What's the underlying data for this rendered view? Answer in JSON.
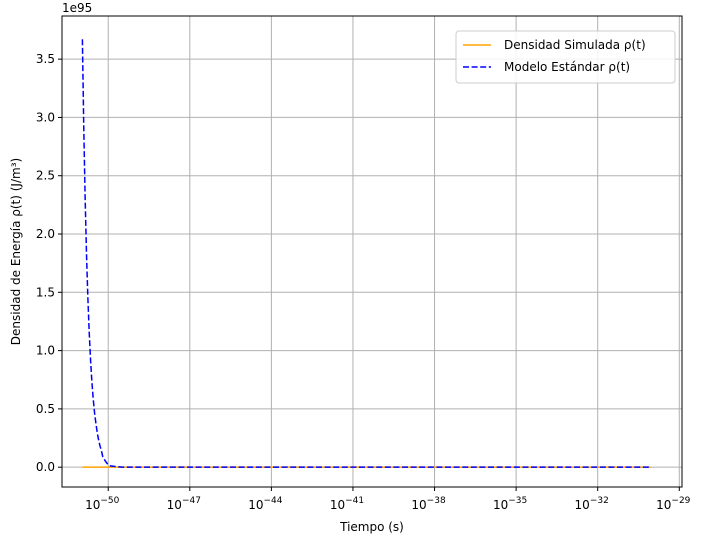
{
  "chart_data": {
    "type": "line",
    "title": "",
    "xlabel": "Tiempo (s)",
    "ylabel": "Densidad de Energía ρ(t) (J/m³)",
    "x_scale": "log",
    "xlim_exp": [
      -51.7,
      -28.9
    ],
    "ylim": [
      -0.17,
      3.87
    ],
    "y_offset_label": "1e95",
    "y_ticks": [
      0.0,
      0.5,
      1.0,
      1.5,
      2.0,
      2.5,
      3.0,
      3.5
    ],
    "y_tick_labels": [
      "0.0",
      "0.5",
      "1.0",
      "1.5",
      "2.0",
      "2.5",
      "3.0",
      "3.5"
    ],
    "x_tick_exps": [
      -50,
      -47,
      -44,
      -41,
      -38,
      -35,
      -32,
      -29
    ],
    "x_tick_base": "10",
    "x_tick_exp_labels": [
      "−50",
      "−47",
      "−44",
      "−41",
      "−38",
      "−35",
      "−32",
      "−29"
    ],
    "grid": true,
    "legend_position": "upper right",
    "series": [
      {
        "name": "Densidad Simulada ρ(t)",
        "color": "#ffa500",
        "style": "solid",
        "x_exp": [
          -50.95,
          -50.5,
          -50.0,
          -49.5,
          -49.0,
          -45.0,
          -40.0,
          -35.0,
          -30.05
        ],
        "values": [
          0.0,
          0.0,
          0.0,
          0.0,
          0.0,
          0.0,
          0.0,
          0.0,
          0.0
        ]
      },
      {
        "name": "Modelo Estándar ρ(t)",
        "color": "#0000ff",
        "style": "dashed",
        "x_exp": [
          -50.95,
          -50.9,
          -50.85,
          -50.8,
          -50.75,
          -50.7,
          -50.65,
          -50.6,
          -50.55,
          -50.5,
          -50.45,
          -50.4,
          -50.35,
          -50.3,
          -50.25,
          -50.2,
          -50.1,
          -50.0,
          -49.9,
          -49.5,
          -49.0,
          -45.0,
          -40.0,
          -35.0,
          -30.05
        ],
        "values": [
          3.67,
          2.92,
          2.32,
          1.84,
          1.46,
          1.16,
          0.92,
          0.73,
          0.58,
          0.46,
          0.37,
          0.29,
          0.23,
          0.18,
          0.14,
          0.09,
          0.05,
          0.02,
          0.01,
          0.0,
          0.0,
          0.0,
          0.0,
          0.0,
          0.0
        ]
      }
    ]
  }
}
